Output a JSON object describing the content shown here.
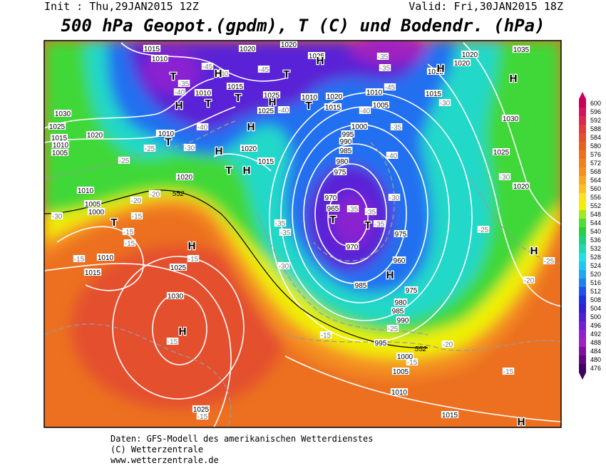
{
  "header": {
    "init": "Init : Thu,29JAN2015 12Z",
    "valid": "Valid: Fri,30JAN2015 18Z",
    "title": "500 hPa Geopot.(gpdm), T (C) und Bodendr. (hPa)"
  },
  "map": {
    "pressure_labels": [
      "1015",
      "1010",
      "1020",
      "1020",
      "1025",
      "1015",
      "1010",
      "1025",
      "1025",
      "1010",
      "1020",
      "1015",
      "1010",
      "1005",
      "1015",
      "1020",
      "1020",
      "1025",
      "1035",
      "1030",
      "1025",
      "1020",
      "1015",
      "1010",
      "1005",
      "1010",
      "1020",
      "1015",
      "1020",
      "1010",
      "1005",
      "1000",
      "1010",
      "1015",
      "1025",
      "1030",
      "1000",
      "995",
      "990",
      "985",
      "980",
      "975",
      "970",
      "965",
      "970",
      "975",
      "960",
      "985",
      "975",
      "980",
      "985",
      "990",
      "995",
      "1000",
      "1005",
      "1010",
      "1015",
      "1025",
      "1030",
      "1025",
      "1020"
    ],
    "temperature_labels": [
      "-45",
      "-45",
      "-40",
      "-35",
      "-40",
      "-40",
      "-35",
      "-30",
      "-25",
      "-25",
      "-35",
      "-35",
      "-45",
      "-40",
      "-35",
      "-40",
      "-30",
      "-35",
      "-35",
      "-35",
      "-35",
      "-35",
      "-30",
      "-20",
      "-20",
      "-15",
      "-15",
      "-15",
      "-30",
      "-15",
      "-15",
      "-15",
      "-15",
      "-25",
      "-25",
      "-20",
      "-20",
      "-15",
      "-15",
      "-15",
      "-25",
      "-30",
      "-30",
      "-40"
    ],
    "center_labels": [
      "H",
      "T",
      "H",
      "T",
      "T",
      "H",
      "H",
      "T",
      "T",
      "H",
      "H",
      "H",
      "H",
      "T",
      "H",
      "T",
      "T",
      "H",
      "H",
      "T",
      "T",
      "H",
      "H",
      "H"
    ],
    "thickness_labels": [
      "552",
      "552"
    ]
  },
  "colorbar": {
    "labels": [
      600,
      596,
      592,
      588,
      584,
      580,
      576,
      572,
      568,
      564,
      560,
      556,
      552,
      548,
      544,
      540,
      536,
      532,
      528,
      524,
      520,
      516,
      512,
      508,
      504,
      500,
      496,
      492,
      488,
      484,
      480,
      476
    ],
    "colors": [
      "#c8005a",
      "#d2145a",
      "#dc2850",
      "#e03c3c",
      "#e4502d",
      "#e86020",
      "#ec7020",
      "#f08020",
      "#f49020",
      "#f8a820",
      "#fcc020",
      "#ffe020",
      "#f0f000",
      "#a0e820",
      "#50dc30",
      "#28d040",
      "#20d080",
      "#20d8b0",
      "#20e0e0",
      "#20c8f0",
      "#20a8f0",
      "#2080f0",
      "#2050f0",
      "#2030e0",
      "#3020d0",
      "#5020d0",
      "#7020d0",
      "#9020d0",
      "#a020c0",
      "#8010a0",
      "#600880",
      "#400060"
    ]
  },
  "footer": {
    "line1": "Daten: GFS-Modell des amerikanischen Wetterdienstes",
    "line2": "(C) Wetterzentrale",
    "line3": "www.wetterzentrale.de"
  }
}
